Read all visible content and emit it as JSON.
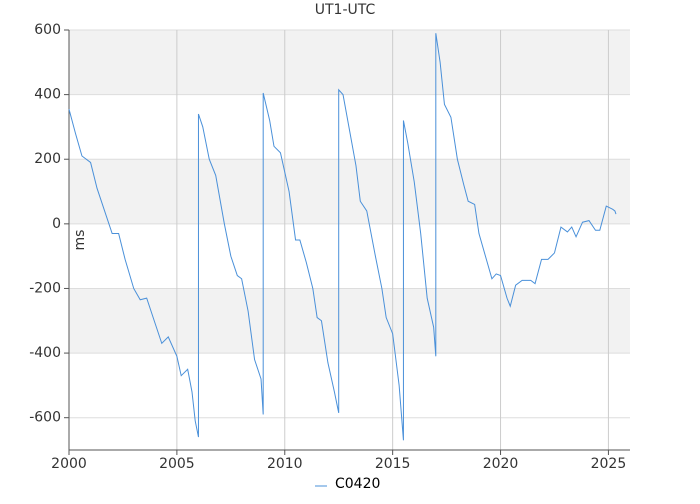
{
  "chart_data": {
    "type": "line",
    "title": "UT1-UTC",
    "y_label": "ms",
    "xlim": [
      2000,
      2026
    ],
    "xticks": [
      2000,
      2005,
      2010,
      2015,
      2020,
      2025
    ],
    "ylim": [
      -700,
      600
    ],
    "yticks": [
      -600,
      -400,
      -200,
      0,
      200,
      400,
      600
    ],
    "grid": true,
    "banded_background": true,
    "legend": "bottom",
    "series": [
      {
        "name": "C0420",
        "color": "#4a90d9",
        "x": [
          2000.0,
          2000.3,
          2000.6,
          2001.0,
          2001.3,
          2001.6,
          2002.0,
          2002.3,
          2002.6,
          2003.0,
          2003.3,
          2003.6,
          2004.0,
          2004.3,
          2004.6,
          2005.0,
          2005.2,
          2005.5,
          2005.7,
          2005.85,
          2006.0,
          2006.0,
          2006.2,
          2006.5,
          2006.8,
          2007.2,
          2007.5,
          2007.8,
          2008.0,
          2008.3,
          2008.6,
          2008.9,
          2009.0,
          2009.0,
          2009.3,
          2009.5,
          2009.8,
          2010.2,
          2010.5,
          2010.7,
          2011.0,
          2011.3,
          2011.5,
          2011.7,
          2012.0,
          2012.3,
          2012.5,
          2012.5,
          2012.7,
          2013.0,
          2013.3,
          2013.5,
          2013.8,
          2014.2,
          2014.5,
          2014.7,
          2015.0,
          2015.3,
          2015.5,
          2015.5,
          2015.7,
          2016.0,
          2016.3,
          2016.6,
          2016.9,
          2017.0,
          2017.0,
          2017.2,
          2017.4,
          2017.7,
          2018.0,
          2018.3,
          2018.5,
          2018.8,
          2019.0,
          2019.3,
          2019.6,
          2019.8,
          2020.0,
          2020.3,
          2020.45,
          2020.7,
          2021.0,
          2021.4,
          2021.6,
          2021.9,
          2022.2,
          2022.5,
          2022.8,
          2023.1,
          2023.3,
          2023.5,
          2023.8,
          2024.1,
          2024.4,
          2024.6,
          2024.9,
          2025.2,
          2025.3,
          2025.35
        ],
        "values": [
          355,
          280,
          210,
          190,
          110,
          50,
          -30,
          -30,
          -110,
          -200,
          -235,
          -230,
          -310,
          -370,
          -350,
          -410,
          -470,
          -450,
          -520,
          -610,
          -660,
          340,
          300,
          200,
          150,
          0,
          -100,
          -160,
          -170,
          -270,
          -420,
          -480,
          -590,
          405,
          320,
          240,
          220,
          100,
          -50,
          -50,
          -120,
          -200,
          -290,
          -300,
          -430,
          -520,
          -585,
          415,
          400,
          290,
          180,
          70,
          40,
          -100,
          -200,
          -290,
          -340,
          -500,
          -670,
          320,
          250,
          130,
          -30,
          -230,
          -320,
          -410,
          590,
          500,
          370,
          330,
          200,
          120,
          70,
          60,
          -30,
          -100,
          -170,
          -155,
          -160,
          -230,
          -255,
          -190,
          -175,
          -175,
          -185,
          -110,
          -110,
          -90,
          -10,
          -25,
          -10,
          -40,
          5,
          10,
          -20,
          -20,
          55,
          45,
          40,
          30
        ]
      }
    ]
  }
}
